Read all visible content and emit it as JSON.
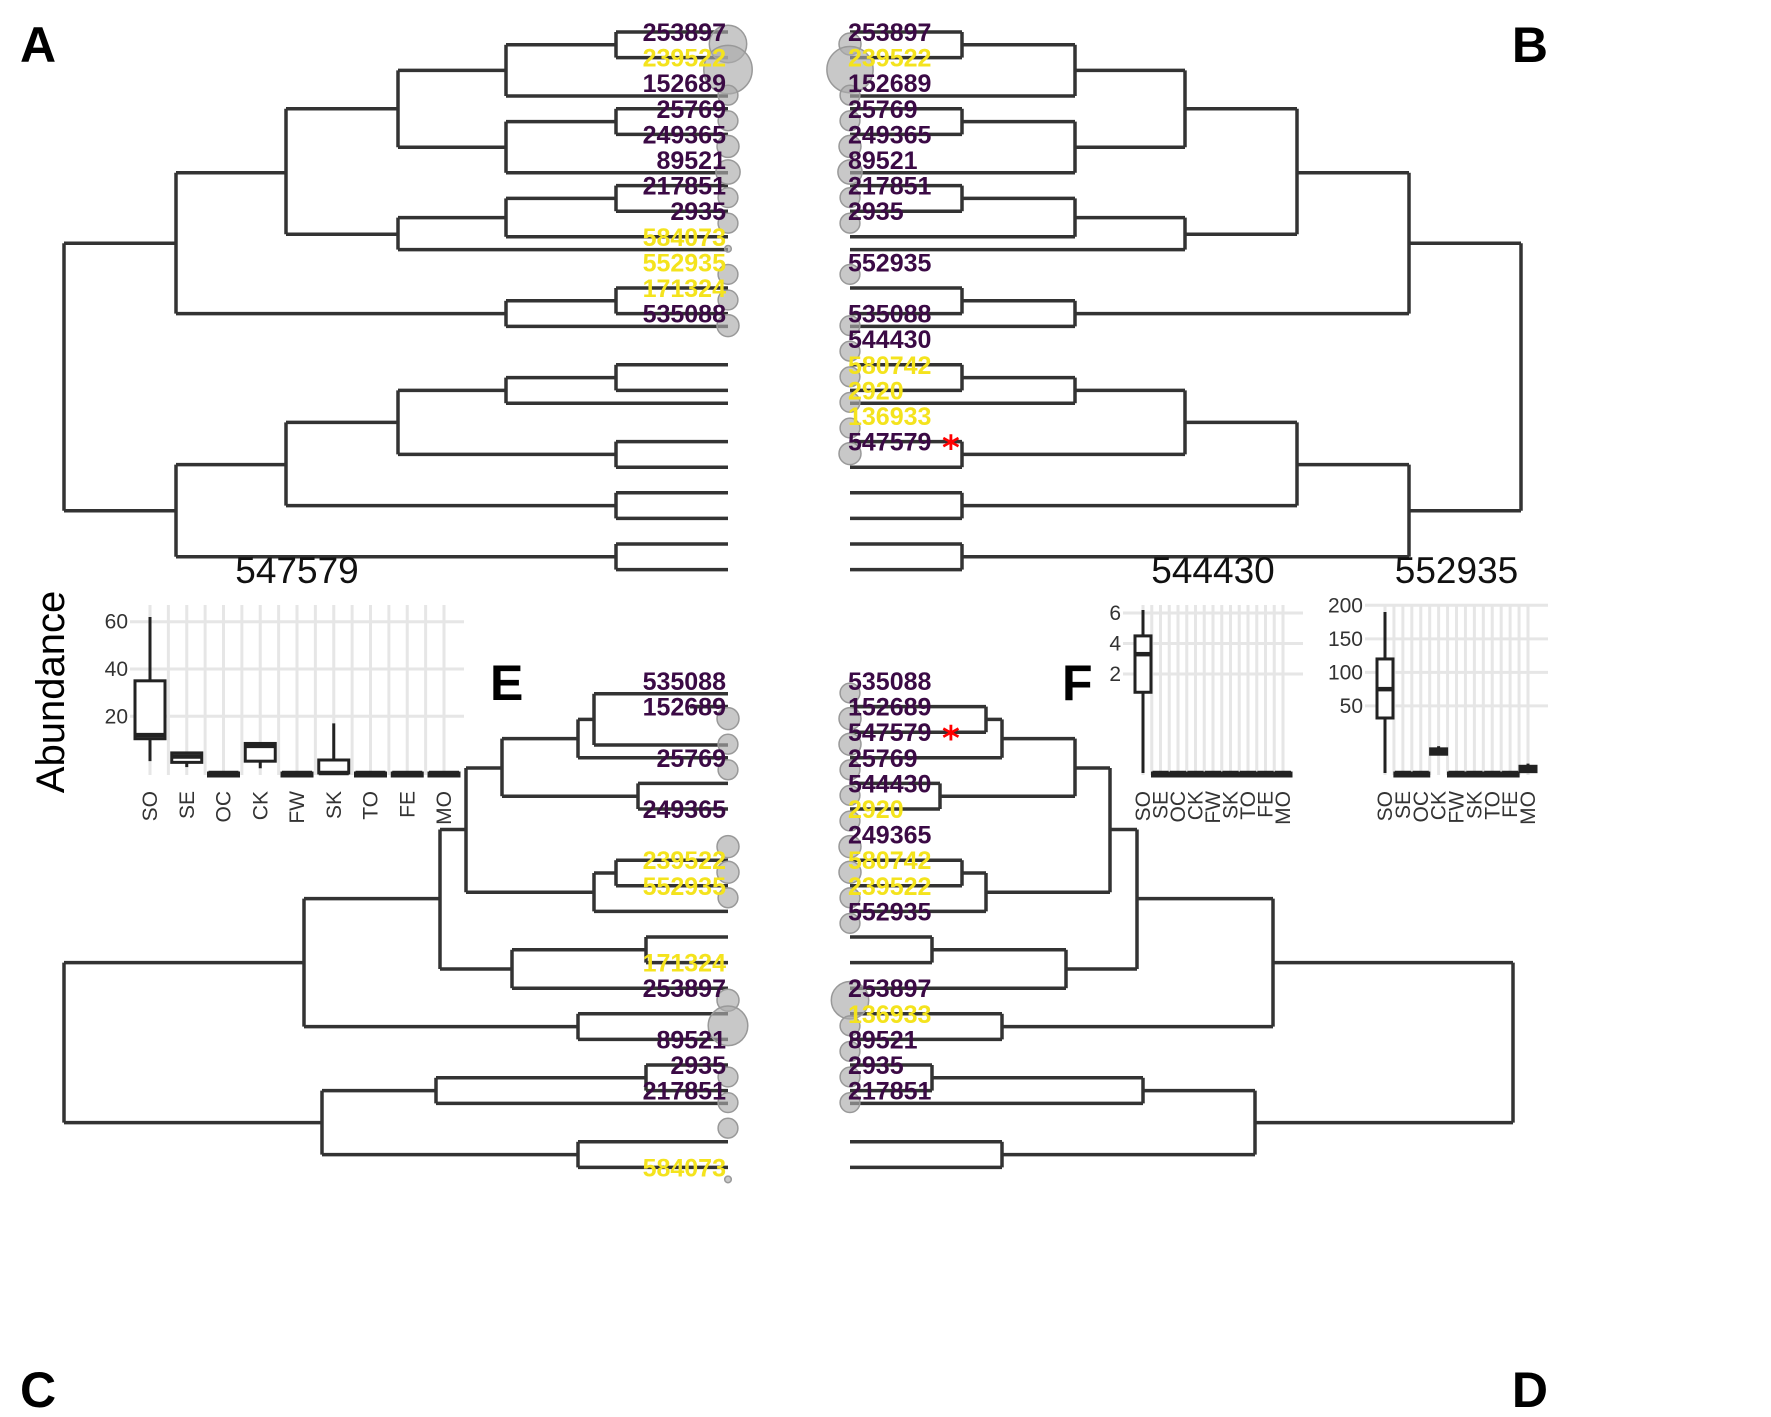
{
  "colors": {
    "purple": "#3b0a45",
    "yellow": "#f4e31d",
    "asterisk": "#ff0000",
    "bubble": "#aaaaaa"
  },
  "panels": {
    "A": {
      "label": "A",
      "tips": [
        {
          "id": "253897",
          "c": "purple",
          "b": 1.7
        },
        {
          "id": "239522",
          "c": "yellow",
          "b": 2.2
        },
        {
          "id": "152689",
          "c": "purple",
          "b": 0.9
        },
        {
          "id": "25769",
          "c": "purple",
          "b": 0.9
        },
        {
          "id": "249365",
          "c": "purple",
          "b": 1.0
        },
        {
          "id": "89521",
          "c": "purple",
          "b": 1.1
        },
        {
          "id": "217851",
          "c": "purple",
          "b": 0.9
        },
        {
          "id": "2935",
          "c": "purple",
          "b": 0.9
        },
        {
          "id": "584073",
          "c": "yellow",
          "b": 0.3
        },
        {
          "id": "552935",
          "c": "yellow",
          "b": 0.9
        },
        {
          "id": "171324",
          "c": "yellow",
          "b": 0.9
        },
        {
          "id": "535088",
          "c": "purple",
          "b": 1.0
        },
        {
          "id": "",
          "c": "purple",
          "b": 0
        },
        {
          "id": "",
          "c": "purple",
          "b": 0
        },
        {
          "id": "",
          "c": "purple",
          "b": 0
        },
        {
          "id": "",
          "c": "purple",
          "b": 0
        },
        {
          "id": "",
          "c": "purple",
          "b": 0
        },
        {
          "id": "",
          "c": "purple",
          "b": 0
        },
        {
          "id": "",
          "c": "purple",
          "b": 0
        },
        {
          "id": "",
          "c": "purple",
          "b": 0
        }
      ]
    },
    "B": {
      "label": "B",
      "tips": [
        {
          "id": "253897",
          "c": "purple",
          "b": 1.0
        },
        {
          "id": "239522",
          "c": "yellow",
          "b": 2.1
        },
        {
          "id": "152689",
          "c": "purple",
          "b": 0.9
        },
        {
          "id": "25769",
          "c": "purple",
          "b": 0.9
        },
        {
          "id": "249365",
          "c": "purple",
          "b": 1.0
        },
        {
          "id": "89521",
          "c": "purple",
          "b": 1.1
        },
        {
          "id": "217851",
          "c": "purple",
          "b": 0.9
        },
        {
          "id": "2935",
          "c": "purple",
          "b": 0.9
        },
        {
          "id": "",
          "c": "purple",
          "b": 0
        },
        {
          "id": "552935",
          "c": "purple",
          "b": 0.9
        },
        {
          "id": "",
          "c": "purple",
          "b": 0
        },
        {
          "id": "535088",
          "c": "purple",
          "b": 0.9
        },
        {
          "id": "544430",
          "c": "purple",
          "b": 0.9
        },
        {
          "id": "580742",
          "c": "yellow",
          "b": 0.9
        },
        {
          "id": "2920",
          "c": "yellow",
          "b": 0.9
        },
        {
          "id": "136933",
          "c": "yellow",
          "b": 0.9
        },
        {
          "id": "547579",
          "c": "purple",
          "b": 1.0,
          "star": true
        },
        {
          "id": "",
          "c": "purple",
          "b": 0
        },
        {
          "id": "",
          "c": "purple",
          "b": 0
        },
        {
          "id": "",
          "c": "purple",
          "b": 0
        }
      ]
    },
    "C": {
      "label": "C",
      "tips": [
        {
          "id": "535088",
          "c": "purple",
          "b": 0
        },
        {
          "id": "152689",
          "c": "purple",
          "b": 1.0
        },
        {
          "id": "",
          "c": "purple",
          "b": 0.9
        },
        {
          "id": "25769",
          "c": "purple",
          "b": 0.9
        },
        {
          "id": "",
          "c": "purple",
          "b": 0
        },
        {
          "id": "249365",
          "c": "purple",
          "b": 0
        },
        {
          "id": "",
          "c": "purple",
          "b": 1.0
        },
        {
          "id": "239522",
          "c": "yellow",
          "b": 1.0
        },
        {
          "id": "552935",
          "c": "yellow",
          "b": 0.9
        },
        {
          "id": "",
          "c": "purple",
          "b": 0
        },
        {
          "id": "",
          "c": "purple",
          "b": 0
        },
        {
          "id": "171324",
          "c": "yellow",
          "b": 0
        },
        {
          "id": "253897",
          "c": "purple",
          "b": 1.0
        },
        {
          "id": "",
          "c": "purple",
          "b": 1.8
        },
        {
          "id": "89521",
          "c": "purple",
          "b": 0
        },
        {
          "id": "2935",
          "c": "purple",
          "b": 0.9
        },
        {
          "id": "217851",
          "c": "purple",
          "b": 0.9
        },
        {
          "id": "",
          "c": "purple",
          "b": 0.9
        },
        {
          "id": "",
          "c": "purple",
          "b": 0
        },
        {
          "id": "584073",
          "c": "yellow",
          "b": 0.3
        }
      ]
    },
    "D": {
      "label": "D",
      "tips": [
        {
          "id": "535088",
          "c": "purple",
          "b": 0.9
        },
        {
          "id": "152689",
          "c": "purple",
          "b": 1.0
        },
        {
          "id": "547579",
          "c": "purple",
          "b": 1.0,
          "star": true
        },
        {
          "id": "25769",
          "c": "purple",
          "b": 0.9
        },
        {
          "id": "544430",
          "c": "purple",
          "b": 0.9
        },
        {
          "id": "2920",
          "c": "yellow",
          "b": 0.9
        },
        {
          "id": "249365",
          "c": "purple",
          "b": 1.0
        },
        {
          "id": "580742",
          "c": "yellow",
          "b": 1.0
        },
        {
          "id": "239522",
          "c": "yellow",
          "b": 0.9
        },
        {
          "id": "552935",
          "c": "purple",
          "b": 0.9
        },
        {
          "id": "",
          "c": "purple",
          "b": 0
        },
        {
          "id": "",
          "c": "purple",
          "b": 0
        },
        {
          "id": "253897",
          "c": "purple",
          "b": 1.7
        },
        {
          "id": "136933",
          "c": "yellow",
          "b": 0.9
        },
        {
          "id": "89521",
          "c": "purple",
          "b": 0.9
        },
        {
          "id": "2935",
          "c": "purple",
          "b": 0.9
        },
        {
          "id": "217851",
          "c": "purple",
          "b": 0.9
        },
        {
          "id": "",
          "c": "purple",
          "b": 0
        },
        {
          "id": "",
          "c": "purple",
          "b": 0
        },
        {
          "id": "",
          "c": "purple",
          "b": 0
        }
      ]
    },
    "E": {
      "label": "E",
      "plots": [
        {
          "title": "547579",
          "ylabel": "Abundance",
          "yticks": [
            "60",
            "40",
            "20"
          ],
          "categories": [
            "SO",
            "SE",
            "OC",
            "CK",
            "FW",
            "SK",
            "TO",
            "FE",
            "MO"
          ],
          "boxes": [
            {
              "cat": "SO",
              "min": 1,
              "q1": 10.5,
              "median": 12,
              "q3": 35,
              "max": 62
            },
            {
              "cat": "SE",
              "min": -1.5,
              "q1": 0.5,
              "median": 3,
              "q3": 4.5,
              "max": 5
            },
            {
              "cat": "OC",
              "min": -4,
              "q1": -4,
              "median": -4,
              "q3": -4,
              "max": -4
            },
            {
              "cat": "CK",
              "min": -2,
              "q1": 1,
              "median": 7.5,
              "q3": 8.5,
              "max": 9
            },
            {
              "cat": "FW",
              "min": -4,
              "q1": -4,
              "median": -4,
              "q3": -4,
              "max": -4
            },
            {
              "cat": "SK",
              "min": -4,
              "q1": -4,
              "median": -4,
              "q3": 1.5,
              "max": 17
            },
            {
              "cat": "TO",
              "min": -4,
              "q1": -4,
              "median": -4,
              "q3": -4,
              "max": -4
            },
            {
              "cat": "FE",
              "min": -4,
              "q1": -4,
              "median": -4,
              "q3": -4,
              "max": -4
            },
            {
              "cat": "MO",
              "min": -4,
              "q1": -4,
              "median": -4,
              "q3": -4,
              "max": -4
            }
          ]
        }
      ]
    },
    "F": {
      "label": "F",
      "plots": [
        {
          "title": "544430",
          "yticks": [
            "6",
            "4",
            "2"
          ],
          "categories": [
            "SO",
            "SE",
            "OC",
            "CK",
            "FW",
            "SK",
            "TO",
            "FE",
            "MO"
          ],
          "boxes": [
            {
              "cat": "SO",
              "min": -4.5,
              "q1": 0.8,
              "median": 3.3,
              "q3": 4.5,
              "max": 6.2
            },
            {
              "cat": "SE",
              "min": -4.5,
              "q1": -4.5,
              "median": -4.5,
              "q3": -4.5,
              "max": -4.5
            },
            {
              "cat": "OC",
              "min": -4.5,
              "q1": -4.5,
              "median": -4.5,
              "q3": -4.5,
              "max": -4.5
            },
            {
              "cat": "CK",
              "min": -4.5,
              "q1": -4.5,
              "median": -4.5,
              "q3": -4.5,
              "max": -4.5
            },
            {
              "cat": "FW",
              "min": -4.5,
              "q1": -4.5,
              "median": -4.5,
              "q3": -4.5,
              "max": -4.5
            },
            {
              "cat": "SK",
              "min": -4.5,
              "q1": -4.5,
              "median": -4.5,
              "q3": -4.5,
              "max": -4.5
            },
            {
              "cat": "TO",
              "min": -4.5,
              "q1": -4.5,
              "median": -4.5,
              "q3": -4.5,
              "max": -4.5
            },
            {
              "cat": "FE",
              "min": -4.5,
              "q1": -4.5,
              "median": -4.5,
              "q3": -4.5,
              "max": -4.5
            },
            {
              "cat": "MO",
              "min": -4.5,
              "q1": -4.5,
              "median": -4.5,
              "q3": -4.5,
              "max": -4.5
            }
          ]
        },
        {
          "title": "552935",
          "yticks": [
            "200",
            "150",
            "100",
            "50"
          ],
          "categories": [
            "SO",
            "SE",
            "OC",
            "CK",
            "FW",
            "SK",
            "TO",
            "FE",
            "MO"
          ],
          "boxes": [
            {
              "cat": "SO",
              "min": -50,
              "q1": 32,
              "median": 75,
              "q3": 120,
              "max": 190
            },
            {
              "cat": "SE",
              "min": -50,
              "q1": -50,
              "median": -50,
              "q3": -50,
              "max": -50
            },
            {
              "cat": "OC",
              "min": -50,
              "q1": -50,
              "median": -50,
              "q3": -50,
              "max": -50
            },
            {
              "cat": "CK",
              "min": -22,
              "q1": -22,
              "median": -18,
              "q3": -14,
              "max": -10
            },
            {
              "cat": "FW",
              "min": -50,
              "q1": -50,
              "median": -50,
              "q3": -50,
              "max": -50
            },
            {
              "cat": "SK",
              "min": -50,
              "q1": -50,
              "median": -50,
              "q3": -50,
              "max": -50
            },
            {
              "cat": "TO",
              "min": -50,
              "q1": -50,
              "median": -50,
              "q3": -50,
              "max": -50
            },
            {
              "cat": "FE",
              "min": -50,
              "q1": -50,
              "median": -50,
              "q3": -50,
              "max": -50
            },
            {
              "cat": "MO",
              "min": -50,
              "q1": -48,
              "median": -44,
              "q3": -40,
              "max": -36
            }
          ]
        }
      ]
    }
  }
}
